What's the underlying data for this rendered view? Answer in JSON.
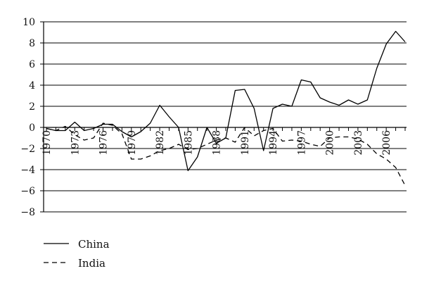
{
  "chart_data": {
    "type": "line",
    "title": "",
    "xlabel": "",
    "ylabel": "",
    "ylim": [
      -8,
      10
    ],
    "xlim": [
      1970,
      2008
    ],
    "yticks": [
      "10",
      "8",
      "6",
      "4",
      "2",
      "0",
      "−2",
      "−4",
      "−6",
      "−8"
    ],
    "ytick_values": [
      10,
      8,
      6,
      4,
      2,
      0,
      -2,
      -4,
      -6,
      -8
    ],
    "xticks": [
      "1970",
      "1973",
      "1976",
      "1979",
      "1982",
      "1985",
      "1988",
      "1991",
      "1994",
      "1997",
      "2000",
      "2003",
      "2006"
    ],
    "xtick_values": [
      1970,
      1973,
      1976,
      1979,
      1982,
      1985,
      1988,
      1991,
      1994,
      1997,
      2000,
      2003,
      2006
    ],
    "grid": "horizontal",
    "legend_position": "bottom-left",
    "series": [
      {
        "name": "China",
        "style": "solid",
        "color": "#000000",
        "x": [
          1970,
          1971,
          1972,
          1973,
          1974,
          1975,
          1976,
          1977,
          1978,
          1979,
          1980,
          1981,
          1982,
          1983,
          1984,
          1985,
          1986,
          1987,
          1988,
          1989,
          1990,
          1991,
          1992,
          1993,
          1994,
          1995,
          1996,
          1997,
          1998,
          1999,
          2000,
          2001,
          2002,
          2003,
          2004,
          2005,
          2006,
          2007,
          2008
        ],
        "values": [
          -0.1,
          -0.3,
          -0.3,
          0.5,
          -0.3,
          -0.1,
          0.3,
          0.3,
          -0.4,
          -0.9,
          -0.4,
          0.4,
          2.1,
          1.0,
          0.0,
          -4.1,
          -2.8,
          0.0,
          -1.5,
          -1.0,
          3.5,
          3.6,
          1.8,
          -2.2,
          1.8,
          2.2,
          2.0,
          4.5,
          4.3,
          2.8,
          2.4,
          2.1,
          2.6,
          2.2,
          2.6,
          5.6,
          7.9,
          9.1,
          8.1
        ]
      },
      {
        "name": "India",
        "style": "dashed",
        "color": "#000000",
        "x": [
          1970,
          1971,
          1972,
          1973,
          1974,
          1975,
          1976,
          1977,
          1978,
          1979,
          1980,
          1981,
          1982,
          1983,
          1984,
          1985,
          1986,
          1987,
          1988,
          1989,
          1990,
          1991,
          1992,
          1993,
          1994,
          1995,
          1996,
          1997,
          1998,
          1999,
          2000,
          2001,
          2002,
          2003,
          2004,
          2005,
          2006,
          2007,
          2008
        ],
        "values": [
          -0.1,
          -0.3,
          0.1,
          -0.7,
          -1.2,
          -1.0,
          0.4,
          0.2,
          -0.6,
          -3.0,
          -3.0,
          -2.7,
          -2.2,
          -2.0,
          -1.6,
          -2.1,
          -2.0,
          -1.6,
          -1.2,
          -1.0,
          -1.4,
          0.0,
          -0.8,
          -0.3,
          -0.1,
          -1.3,
          -1.2,
          -1.3,
          -1.6,
          -1.8,
          -1.0,
          -0.9,
          -0.9,
          -1.1,
          -1.6,
          -2.5,
          -3.0,
          -3.8,
          -5.5
        ]
      }
    ]
  }
}
